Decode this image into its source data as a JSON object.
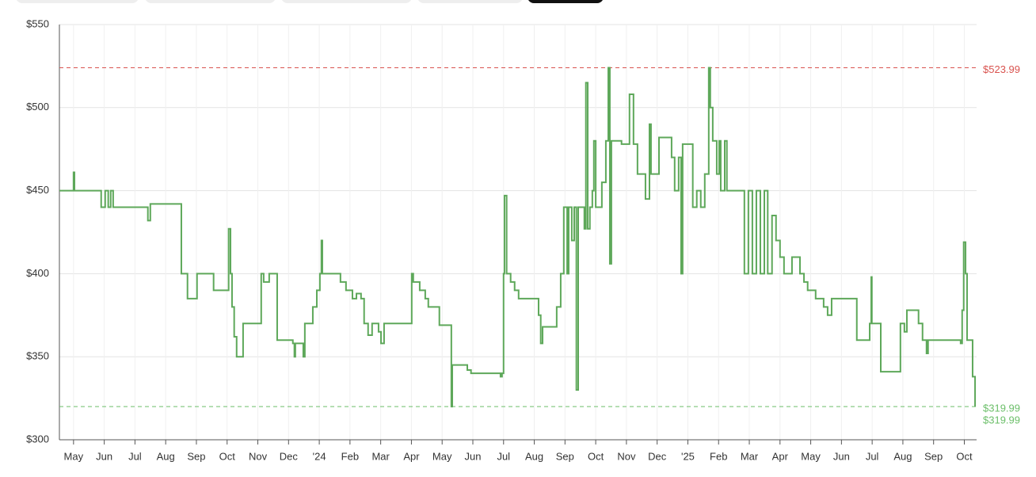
{
  "chart_data": {
    "type": "step",
    "color": "#5ea85a",
    "x": [
      -0.46,
      0,
      0.03,
      0.9,
      1.03,
      1.13,
      1.21,
      1.29,
      2.42,
      2.5,
      3.51,
      3.71,
      4.02,
      4.56,
      5.05,
      5.11,
      5.16,
      5.23,
      5.31,
      5.52,
      6.11,
      6.19,
      6.37,
      6.63,
      7.14,
      7.19,
      7.22,
      7.48,
      7.53,
      7.79,
      7.92,
      8.02,
      8.07,
      8.1,
      8.69,
      8.87,
      9.08,
      9.21,
      9.36,
      9.46,
      9.59,
      9.72,
      9.93,
      10.01,
      10.11,
      11.01,
      11.06,
      11.27,
      11.45,
      11.55,
      11.91,
      12.3,
      12.33,
      12.82,
      12.94,
      13.9,
      13.95,
      14,
      14.03,
      14.1,
      14.23,
      14.36,
      14.49,
      15.14,
      15.21,
      15.27,
      15.73,
      15.86,
      15.96,
      16.07,
      16.12,
      16.22,
      16.3,
      16.37,
      16.43,
      16.63,
      16.68,
      16.74,
      16.81,
      16.89,
      16.94,
      17,
      17.2,
      17.33,
      17.41,
      17.46,
      17.51,
      17.84,
      18.1,
      18.23,
      18.36,
      18.62,
      18.75,
      18.8,
      19.06,
      19.47,
      19.57,
      19.7,
      19.78,
      19.83,
      20.16,
      20.29,
      20.42,
      20.55,
      20.68,
      20.73,
      20.81,
      20.94,
      21.02,
      21.07,
      21.2,
      21.27,
      21.84,
      21.97,
      22.1,
      22.23,
      22.36,
      22.49,
      22.6,
      22.74,
      22.87,
      23,
      23.13,
      23.39,
      23.65,
      23.78,
      23.9,
      24.16,
      24.42,
      24.55,
      24.68,
      25.5,
      25.92,
      25.97,
      25.99,
      26.28,
      26.92,
      27.05,
      27.13,
      27.51,
      27.64,
      27.77,
      27.82,
      28.88,
      28.93,
      28.98,
      29.04,
      29.09,
      29.27,
      29.35
    ],
    "values": [
      450,
      461,
      450,
      440,
      450,
      440,
      450,
      440,
      432,
      442,
      400,
      385,
      400,
      390,
      427,
      400,
      380,
      362,
      350,
      370,
      400,
      395,
      400,
      360,
      358,
      350,
      358,
      350,
      370,
      380,
      390,
      400,
      420,
      400,
      395,
      390,
      385,
      388,
      385,
      370,
      363,
      370,
      365,
      358,
      370,
      400,
      395,
      390,
      385,
      380,
      369,
      319.99,
      345,
      342,
      340,
      338,
      340,
      400,
      447,
      400,
      395,
      390,
      385,
      375,
      358,
      368,
      380,
      400,
      440,
      400,
      440,
      420,
      440,
      330,
      440,
      427,
      515,
      427,
      440,
      450,
      480,
      440,
      455,
      480,
      523.99,
      406,
      480,
      478,
      508,
      478,
      460,
      445,
      490,
      460,
      482,
      470,
      450,
      470,
      400,
      478,
      440,
      450,
      440,
      460,
      523.99,
      500,
      480,
      460,
      480,
      450,
      480,
      450,
      400,
      450,
      400,
      450,
      400,
      450,
      400,
      435,
      420,
      410,
      400,
      410,
      400,
      395,
      390,
      385,
      380,
      375,
      385,
      360,
      370,
      398,
      370,
      341,
      370,
      365,
      378,
      370,
      360,
      352,
      360,
      358,
      378,
      419,
      400,
      360,
      338,
      319.99
    ],
    "xlim": [
      -0.46,
      29.4
    ],
    "xticks": [
      {
        "value": 0,
        "label": "May"
      },
      {
        "value": 1,
        "label": "Jun"
      },
      {
        "value": 2,
        "label": "Jul"
      },
      {
        "value": 3,
        "label": "Aug"
      },
      {
        "value": 4,
        "label": "Sep"
      },
      {
        "value": 5,
        "label": "Oct"
      },
      {
        "value": 6,
        "label": "Nov"
      },
      {
        "value": 7,
        "label": "Dec"
      },
      {
        "value": 8,
        "label": "'24"
      },
      {
        "value": 9,
        "label": "Feb"
      },
      {
        "value": 10,
        "label": "Mar"
      },
      {
        "value": 11,
        "label": "Apr"
      },
      {
        "value": 12,
        "label": "May"
      },
      {
        "value": 13,
        "label": "Jun"
      },
      {
        "value": 14,
        "label": "Jul"
      },
      {
        "value": 15,
        "label": "Aug"
      },
      {
        "value": 16,
        "label": "Sep"
      },
      {
        "value": 17,
        "label": "Oct"
      },
      {
        "value": 18,
        "label": "Nov"
      },
      {
        "value": 19,
        "label": "Dec"
      },
      {
        "value": 20,
        "label": "'25"
      },
      {
        "value": 21,
        "label": "Feb"
      },
      {
        "value": 22,
        "label": "Mar"
      },
      {
        "value": 23,
        "label": "Apr"
      },
      {
        "value": 24,
        "label": "May"
      },
      {
        "value": 25,
        "label": "Jun"
      },
      {
        "value": 26,
        "label": "Jul"
      },
      {
        "value": 27,
        "label": "Aug"
      },
      {
        "value": 28,
        "label": "Sep"
      },
      {
        "value": 29,
        "label": "Oct"
      }
    ],
    "ylim": [
      300,
      550
    ],
    "yticks": [
      {
        "value": 300,
        "label": "$300"
      },
      {
        "value": 350,
        "label": "$350"
      },
      {
        "value": 400,
        "label": "$400"
      },
      {
        "value": 450,
        "label": "$450"
      },
      {
        "value": 500,
        "label": "$500"
      },
      {
        "value": 550,
        "label": "$550"
      }
    ],
    "grid": true,
    "reference_lines": [
      {
        "value": 523.99,
        "label": "$523.99",
        "color": "#d9534f"
      },
      {
        "value": 319.99,
        "label": "$319.99",
        "color": "#6cbf6a"
      }
    ],
    "current": {
      "value": 319.99,
      "label": "$319.99",
      "color": "#6cbf6a"
    }
  }
}
